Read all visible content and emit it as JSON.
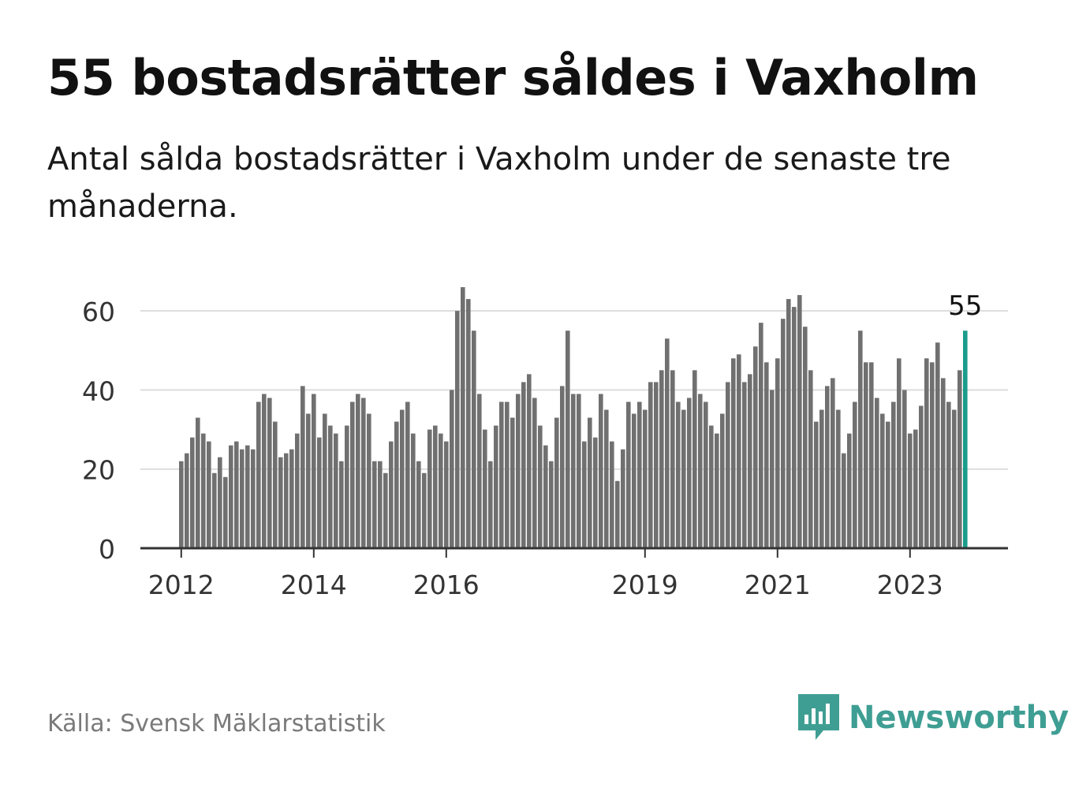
{
  "title": "55 bostadsrätter såldes i Vaxholm",
  "subtitle": "Antal sålda bostadsrätter i Vaxholm under de senaste tre månaderna.",
  "source": "Källa: Svensk Mäklarstatistik",
  "brand": {
    "name": "Newsworthy",
    "icon": "newsworthy-chart-bubble-icon",
    "color": "#3f9e93"
  },
  "colors": {
    "bar": "#707070",
    "highlight": "#1a9c8c",
    "grid": "#dddddd",
    "axis": "#333333"
  },
  "chart_data": {
    "type": "bar",
    "title": "55 bostadsrätter såldes i Vaxholm",
    "xlabel": "",
    "ylabel": "",
    "ylim": [
      0,
      70
    ],
    "yticks": [
      0,
      20,
      40,
      60
    ],
    "grid": true,
    "x_tick_labels": [
      {
        "label": "2012",
        "index": 0
      },
      {
        "label": "2014",
        "index": 24
      },
      {
        "label": "2016",
        "index": 48
      },
      {
        "label": "2019",
        "index": 84
      },
      {
        "label": "2021",
        "index": 108
      },
      {
        "label": "2023",
        "index": 132
      }
    ],
    "highlight_label": "55",
    "values": [
      22,
      24,
      28,
      33,
      29,
      27,
      19,
      23,
      18,
      26,
      27,
      25,
      26,
      25,
      37,
      39,
      38,
      32,
      23,
      24,
      25,
      29,
      41,
      34,
      39,
      28,
      34,
      31,
      29,
      22,
      31,
      37,
      39,
      38,
      34,
      22,
      22,
      19,
      27,
      32,
      35,
      37,
      29,
      22,
      19,
      30,
      31,
      29,
      27,
      40,
      60,
      66,
      63,
      55,
      39,
      30,
      22,
      31,
      37,
      37,
      33,
      39,
      42,
      44,
      38,
      31,
      26,
      22,
      33,
      41,
      55,
      39,
      39,
      27,
      33,
      28,
      39,
      35,
      27,
      17,
      25,
      37,
      34,
      37,
      35,
      42,
      42,
      45,
      53,
      45,
      37,
      35,
      38,
      45,
      39,
      37,
      31,
      29,
      34,
      42,
      48,
      49,
      42,
      44,
      51,
      57,
      47,
      40,
      48,
      58,
      63,
      61,
      64,
      56,
      45,
      32,
      35,
      41,
      43,
      35,
      24,
      29,
      37,
      55,
      47,
      47,
      38,
      34,
      32,
      37,
      48,
      40,
      29,
      30,
      36,
      48,
      47,
      52,
      43,
      37,
      35,
      45,
      55
    ]
  }
}
